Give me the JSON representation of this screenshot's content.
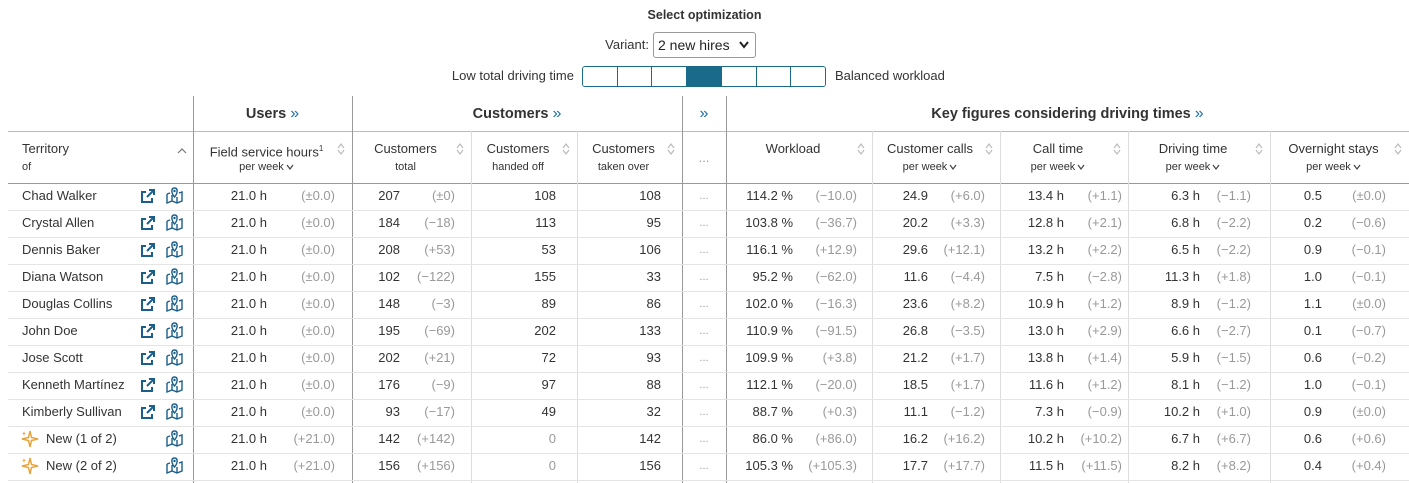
{
  "header": {
    "title": "Select optimization",
    "variant_label": "Variant:",
    "variant": "2 new hires",
    "slider_left": "Low total driving time",
    "slider_right": "Balanced workload",
    "slider_steps": 7,
    "slider_selected": 4
  },
  "table": {
    "groups": [
      {
        "label": "Users",
        "more": "»"
      },
      {
        "label": "Customers",
        "more": "»"
      },
      {
        "more": "»"
      },
      {
        "label": "Key figures considering driving times",
        "more": "»"
      }
    ],
    "columns": [
      {
        "title": "Territory",
        "sub": "of"
      },
      {
        "title": "Field service hours",
        "sup": "1",
        "sub": "per week"
      },
      {
        "title": "Customers",
        "sub": "total"
      },
      {
        "title": "Customers",
        "sub": "handed off"
      },
      {
        "title": "Customers",
        "sub": "taken over"
      },
      {
        "title": "..."
      },
      {
        "title": "Workload"
      },
      {
        "title": "Customer calls",
        "sub": "per week"
      },
      {
        "title": "Call time",
        "sub": "per week"
      },
      {
        "title": "Driving time",
        "sub": "per week"
      },
      {
        "title": "Overnight stays",
        "sub": "per week"
      }
    ],
    "rows": [
      {
        "cells": [
          "Chad Walker",
          "21.0 h",
          "(±0.0)",
          "207",
          "(±0)",
          "108",
          "108",
          "...",
          "114.2 %",
          "(−10.0)",
          "24.9",
          "(+6.0)",
          "13.4 h",
          "(+1.1)",
          "6.3 h",
          "(−1.1)",
          "0.5",
          "(±0.0)"
        ]
      },
      {
        "cells": [
          "Crystal Allen",
          "21.0 h",
          "(±0.0)",
          "184",
          "(−18)",
          "113",
          "95",
          "...",
          "103.8 %",
          "(−36.7)",
          "20.2",
          "(+3.3)",
          "12.8 h",
          "(+2.1)",
          "6.8 h",
          "(−2.2)",
          "0.2",
          "(−0.6)"
        ]
      },
      {
        "cells": [
          "Dennis Baker",
          "21.0 h",
          "(±0.0)",
          "208",
          "(+53)",
          "53",
          "106",
          "...",
          "116.1 %",
          "(+12.9)",
          "29.6",
          "(+12.1)",
          "13.2 h",
          "(+2.2)",
          "6.5 h",
          "(−2.2)",
          "0.9",
          "(−0.1)"
        ]
      },
      {
        "cells": [
          "Diana Watson",
          "21.0 h",
          "(±0.0)",
          "102",
          "(−122)",
          "155",
          "33",
          "...",
          "95.2 %",
          "(−62.0)",
          "11.6",
          "(−4.4)",
          "7.5 h",
          "(−2.8)",
          "11.3 h",
          "(+1.8)",
          "1.0",
          "(−0.1)"
        ]
      },
      {
        "cells": [
          "Douglas Collins",
          "21.0 h",
          "(±0.0)",
          "148",
          "(−3)",
          "89",
          "86",
          "...",
          "102.0 %",
          "(−16.3)",
          "23.6",
          "(+8.2)",
          "10.9 h",
          "(+1.2)",
          "8.9 h",
          "(−1.2)",
          "1.1",
          "(±0.0)"
        ]
      },
      {
        "cells": [
          "John Doe",
          "21.0 h",
          "(±0.0)",
          "195",
          "(−69)",
          "202",
          "133",
          "...",
          "110.9 %",
          "(−91.5)",
          "26.8",
          "(−3.5)",
          "13.0 h",
          "(+2.9)",
          "6.6 h",
          "(−2.7)",
          "0.1",
          "(−0.7)"
        ]
      },
      {
        "cells": [
          "Jose Scott",
          "21.0 h",
          "(±0.0)",
          "202",
          "(+21)",
          "72",
          "93",
          "...",
          "109.9 %",
          "(+3.8)",
          "21.2",
          "(+1.7)",
          "13.8 h",
          "(+1.4)",
          "5.9 h",
          "(−1.5)",
          "0.6",
          "(−0.2)"
        ]
      },
      {
        "cells": [
          "Kenneth Martínez",
          "21.0 h",
          "(±0.0)",
          "176",
          "(−9)",
          "97",
          "88",
          "...",
          "112.1 %",
          "(−20.0)",
          "18.5",
          "(+1.7)",
          "11.6 h",
          "(+1.2)",
          "8.1 h",
          "(−1.2)",
          "1.0",
          "(−0.1)"
        ]
      },
      {
        "cells": [
          "Kimberly Sullivan",
          "21.0 h",
          "(±0.0)",
          "93",
          "(−17)",
          "49",
          "32",
          "...",
          "88.7 %",
          "(+0.3)",
          "11.1",
          "(−1.2)",
          "7.3 h",
          "(−0.9)",
          "10.2 h",
          "(+1.0)",
          "0.9",
          "(±0.0)"
        ]
      },
      {
        "new": true,
        "cells": [
          "New (1 of 2)",
          "21.0 h",
          "(+21.0)",
          "142",
          "(+142)",
          "0",
          "142",
          "...",
          "86.0 %",
          "(+86.0)",
          "16.2",
          "(+16.2)",
          "10.2 h",
          "(+10.2)",
          "6.7 h",
          "(+6.7)",
          "0.6",
          "(+0.6)"
        ]
      },
      {
        "new": true,
        "cells": [
          "New (2 of 2)",
          "21.0 h",
          "(+21.0)",
          "156",
          "(+156)",
          "0",
          "156",
          "...",
          "105.3 %",
          "(+105.3)",
          "17.7",
          "(+17.7)",
          "11.5 h",
          "(+11.5)",
          "8.2 h",
          "(+8.2)",
          "0.4",
          "(+0.4)"
        ]
      }
    ]
  }
}
